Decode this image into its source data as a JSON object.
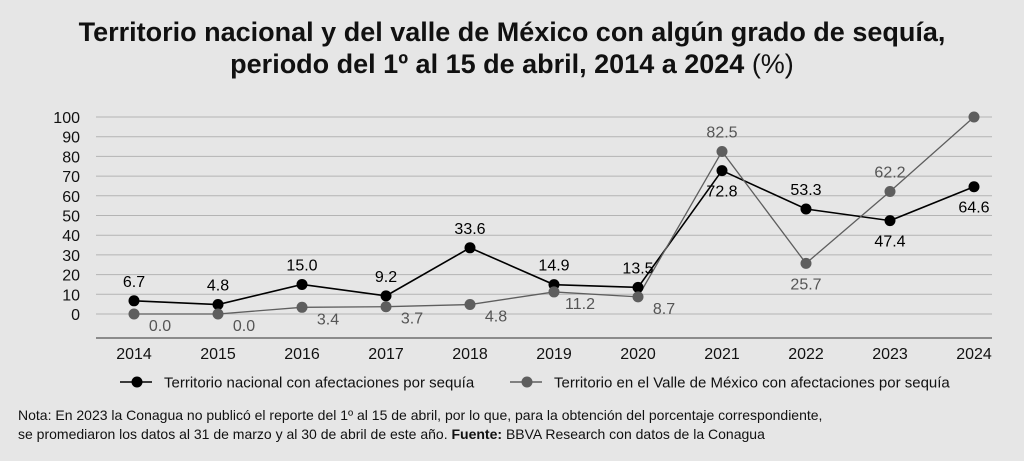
{
  "title": {
    "line1": "Territorio nacional y del valle de México con algún grado de sequía,",
    "line2": "periodo del 1º al 15 de abril, 2014 a 2024",
    "unit": "(%)"
  },
  "chart_data": {
    "type": "line",
    "categories": [
      "2014",
      "2015",
      "2016",
      "2017",
      "2018",
      "2019",
      "2020",
      "2021",
      "2022",
      "2023",
      "2024"
    ],
    "ylim": [
      0,
      100
    ],
    "yticks": [
      0,
      10,
      20,
      30,
      40,
      50,
      60,
      70,
      80,
      90,
      100
    ],
    "grid": true,
    "legend": "bottom",
    "series": [
      {
        "name": "Territorio nacional con afectaciones por sequía",
        "color": "#000000",
        "values": [
          6.7,
          4.8,
          15.0,
          9.2,
          33.6,
          14.9,
          13.5,
          72.8,
          53.3,
          47.4,
          64.6
        ],
        "labels": [
          "6.7",
          "4.8",
          "15.0",
          "9.2",
          "33.6",
          "14.9",
          "13.5",
          "72.8",
          "53.3",
          "47.4",
          "64.6"
        ],
        "label_pos": [
          "above",
          "above",
          "above",
          "above",
          "above",
          "above",
          "above",
          "below",
          "above",
          "below",
          "below"
        ]
      },
      {
        "name": "Territorio en el Valle de México con afectaciones por sequía",
        "color": "#5e5e5e",
        "values": [
          0.0,
          0.0,
          3.4,
          3.7,
          4.8,
          11.2,
          8.7,
          82.5,
          25.7,
          62.2,
          100
        ],
        "labels": [
          "0.0",
          "0.0",
          "3.4",
          "3.7",
          "4.8",
          "11.2",
          "8.7",
          "82.5",
          "25.7",
          "62.2",
          ""
        ],
        "label_pos": [
          "below-right",
          "below-right",
          "below-right",
          "below-right",
          "below-right",
          "below-right",
          "below-right",
          "above",
          "below",
          "above",
          "none"
        ]
      }
    ]
  },
  "note": {
    "text1": "Nota: En 2023 la Conagua no publicó el reporte del 1º al 15 de abril, por lo que, para la obtención del porcentaje correspondiente,",
    "text2": "se promediaron los datos al 31 de marzo y al 30 de abril de este año.",
    "source_label": "Fuente:",
    "source_text": "BBVA Research con datos de la Conagua"
  }
}
